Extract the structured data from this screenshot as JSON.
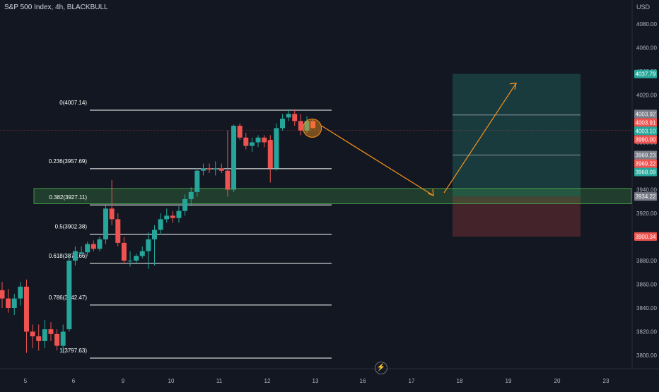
{
  "header": {
    "title": "S&P 500 Index, 4h, BLACKBULL",
    "currency": "USD"
  },
  "colors": {
    "background": "#131722",
    "up": "#26a69a",
    "down": "#ef5350",
    "fib_line": "#ffffff",
    "zone_fill": "#4caf50",
    "arrow": "#f7931a",
    "profit": "#1f5a55",
    "loss": "#5a2a2e"
  },
  "chart_data": {
    "type": "candlestick",
    "title": "S&P 500 Index, 4h, BLACKBULL",
    "ylim": [
      3788,
      4100
    ],
    "y_ticks": [
      3800,
      3820,
      3840,
      3860,
      3880,
      3900,
      3920,
      3940,
      3960,
      3980,
      4000,
      4020,
      4040,
      4060,
      4080
    ],
    "x_ticks": [
      "5",
      "6",
      "9",
      "10",
      "11",
      "12",
      "13",
      "16",
      "17",
      "18",
      "19",
      "20",
      "23"
    ],
    "candles": [
      {
        "x": 5.0,
        "o": 3855,
        "h": 3862,
        "l": 3840,
        "c": 3848
      },
      {
        "x": 5.17,
        "o": 3848,
        "h": 3856,
        "l": 3836,
        "c": 3840
      },
      {
        "x": 5.33,
        "o": 3840,
        "h": 3852,
        "l": 3834,
        "c": 3848
      },
      {
        "x": 5.5,
        "o": 3848,
        "h": 3862,
        "l": 3842,
        "c": 3858
      },
      {
        "x": 5.67,
        "o": 3858,
        "h": 3864,
        "l": 3802,
        "c": 3820
      },
      {
        "x": 5.83,
        "o": 3820,
        "h": 3826,
        "l": 3806,
        "c": 3816
      },
      {
        "x": 6.0,
        "o": 3816,
        "h": 3826,
        "l": 3804,
        "c": 3812
      },
      {
        "x": 6.17,
        "o": 3812,
        "h": 3830,
        "l": 3806,
        "c": 3822
      },
      {
        "x": 6.33,
        "o": 3822,
        "h": 3828,
        "l": 3812,
        "c": 3818
      },
      {
        "x": 6.5,
        "o": 3818,
        "h": 3822,
        "l": 3804,
        "c": 3808
      },
      {
        "x": 6.67,
        "o": 3808,
        "h": 3826,
        "l": 3802,
        "c": 3820
      },
      {
        "x": 6.83,
        "o": 3822,
        "h": 3886,
        "l": 3820,
        "c": 3880
      },
      {
        "x": 7.0,
        "o": 3880,
        "h": 3892,
        "l": 3876,
        "c": 3888
      },
      {
        "x": 7.17,
        "o": 3886,
        "h": 3892,
        "l": 3884,
        "c": 3887
      },
      {
        "x": 7.33,
        "o": 3887,
        "h": 3896,
        "l": 3884,
        "c": 3894
      },
      {
        "x": 7.5,
        "o": 3894,
        "h": 3897,
        "l": 3888,
        "c": 3890
      },
      {
        "x": 7.67,
        "o": 3890,
        "h": 3900,
        "l": 3888,
        "c": 3898
      },
      {
        "x": 7.83,
        "o": 3898,
        "h": 3927,
        "l": 3894,
        "c": 3924
      },
      {
        "x": 8.0,
        "o": 3924,
        "h": 3948,
        "l": 3910,
        "c": 3915
      },
      {
        "x": 8.17,
        "o": 3915,
        "h": 3920,
        "l": 3892,
        "c": 3895
      },
      {
        "x": 8.33,
        "o": 3895,
        "h": 3900,
        "l": 3877,
        "c": 3880
      },
      {
        "x": 8.5,
        "o": 3880,
        "h": 3888,
        "l": 3875,
        "c": 3880
      },
      {
        "x": 8.67,
        "o": 3880,
        "h": 3886,
        "l": 3877,
        "c": 3884
      },
      {
        "x": 8.83,
        "o": 3884,
        "h": 3892,
        "l": 3882,
        "c": 3888
      },
      {
        "x": 9.0,
        "o": 3888,
        "h": 3904,
        "l": 3873,
        "c": 3898
      },
      {
        "x": 9.17,
        "o": 3898,
        "h": 3910,
        "l": 3876,
        "c": 3906
      },
      {
        "x": 9.33,
        "o": 3906,
        "h": 3920,
        "l": 3902,
        "c": 3915
      },
      {
        "x": 9.5,
        "o": 3915,
        "h": 3924,
        "l": 3912,
        "c": 3918
      },
      {
        "x": 9.67,
        "o": 3918,
        "h": 3922,
        "l": 3912,
        "c": 3916
      },
      {
        "x": 9.83,
        "o": 3916,
        "h": 3926,
        "l": 3912,
        "c": 3922
      },
      {
        "x": 10.0,
        "o": 3922,
        "h": 3936,
        "l": 3918,
        "c": 3932
      },
      {
        "x": 10.17,
        "o": 3932,
        "h": 3942,
        "l": 3926,
        "c": 3938
      },
      {
        "x": 10.33,
        "o": 3938,
        "h": 3958,
        "l": 3934,
        "c": 3956
      },
      {
        "x": 10.5,
        "o": 3956,
        "h": 3962,
        "l": 3952,
        "c": 3958
      },
      {
        "x": 10.67,
        "o": 3958,
        "h": 3962,
        "l": 3954,
        "c": 3957
      },
      {
        "x": 10.83,
        "o": 3957,
        "h": 3964,
        "l": 3952,
        "c": 3958
      },
      {
        "x": 11.0,
        "o": 3958,
        "h": 3962,
        "l": 3954,
        "c": 3956
      },
      {
        "x": 11.17,
        "o": 3956,
        "h": 3990,
        "l": 3934,
        "c": 3940
      },
      {
        "x": 11.33,
        "o": 3940,
        "h": 3995,
        "l": 3938,
        "c": 3994
      },
      {
        "x": 11.5,
        "o": 3994,
        "h": 3996,
        "l": 3982,
        "c": 3984
      },
      {
        "x": 11.67,
        "o": 3984,
        "h": 3988,
        "l": 3974,
        "c": 3977
      },
      {
        "x": 11.83,
        "o": 3977,
        "h": 3984,
        "l": 3972,
        "c": 3980
      },
      {
        "x": 12.0,
        "o": 3980,
        "h": 3986,
        "l": 3976,
        "c": 3984
      },
      {
        "x": 12.17,
        "o": 3984,
        "h": 3986,
        "l": 3976,
        "c": 3980
      },
      {
        "x": 12.33,
        "o": 3982,
        "h": 3986,
        "l": 3946,
        "c": 3958
      },
      {
        "x": 12.5,
        "o": 3958,
        "h": 3996,
        "l": 3956,
        "c": 3992
      },
      {
        "x": 12.67,
        "o": 3992,
        "h": 4004,
        "l": 3990,
        "c": 4000
      },
      {
        "x": 12.83,
        "o": 4001,
        "h": 4008,
        "l": 3998,
        "c": 4004
      },
      {
        "x": 13.0,
        "o": 4004,
        "h": 4008,
        "l": 3994,
        "c": 3998
      },
      {
        "x": 13.17,
        "o": 3998,
        "h": 4004,
        "l": 3986,
        "c": 3990
      },
      {
        "x": 13.33,
        "o": 3990,
        "h": 4002,
        "l": 3988,
        "c": 3998
      },
      {
        "x": 13.5,
        "o": 3998,
        "h": 4000,
        "l": 3992,
        "c": 3992
      }
    ],
    "fib_levels": [
      {
        "label": "0(4007.14)",
        "value": 4007.14
      },
      {
        "label": "0.236(3957.69)",
        "value": 3957.69
      },
      {
        "label": "0.382(3927.11)",
        "value": 3927.11
      },
      {
        "label": "0.5(3902.38)",
        "value": 3902.38
      },
      {
        "label": "0.618(3877.66)",
        "value": 3877.66
      },
      {
        "label": "0.786(3842.47)",
        "value": 3842.47
      },
      {
        "label": "1(3797.63)",
        "value": 3797.63
      }
    ],
    "zone": {
      "low": 3928,
      "high": 3941
    },
    "position": {
      "entry": 3934.22,
      "target": 4037.79,
      "stop": 3900.34
    },
    "projection": [
      {
        "x": 13.6,
        "y": 3994
      },
      {
        "x": 14.7,
        "y": 3935
      },
      {
        "x": 15.75,
        "y": 4030
      }
    ],
    "price_labels": [
      {
        "text": "4037.79",
        "value": 4037.79,
        "color": "#26a69a"
      },
      {
        "text": "4003.92",
        "value": 4003.92,
        "color": "#787b86"
      },
      {
        "text": "4003.91",
        "value": 4003.91,
        "color": "#ef5350"
      },
      {
        "text": "4003.10",
        "value": 4003.1,
        "color": "#26a69a"
      },
      {
        "text": "3990.00",
        "value": 3990.0,
        "color": "#ef5350"
      },
      {
        "text": "3969.23",
        "value": 3969.23,
        "color": "#787b86"
      },
      {
        "text": "3969.22",
        "value": 3969.22,
        "color": "#ef5350"
      },
      {
        "text": "3968.09",
        "value": 3968.09,
        "color": "#26a69a"
      },
      {
        "text": "3934.22",
        "value": 3934.22,
        "color": "#787b86"
      },
      {
        "text": "3900.34",
        "value": 3900.34,
        "color": "#ef5350"
      }
    ]
  }
}
